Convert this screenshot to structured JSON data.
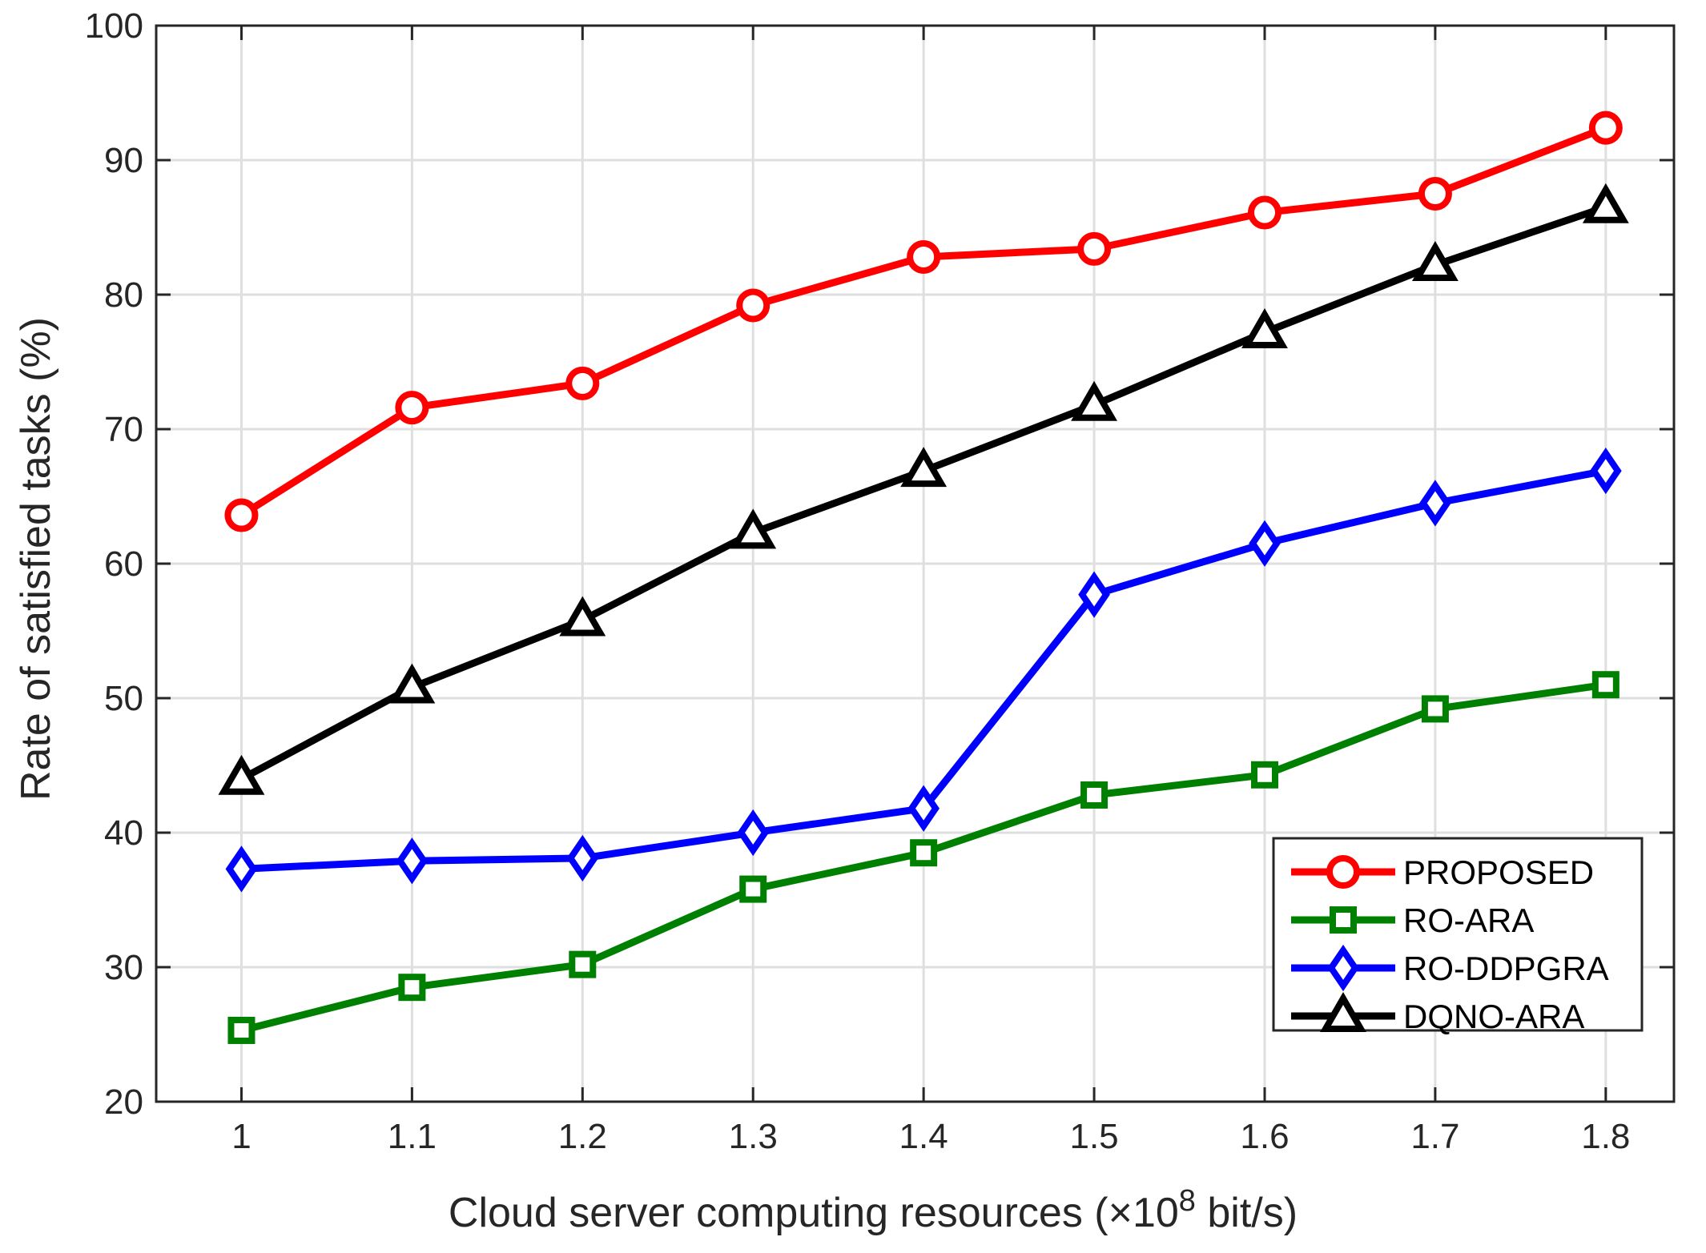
{
  "chart_data": {
    "type": "line",
    "title": "",
    "xlabel": "Cloud server computing resources (×10",
    "xlabel_exponent": "8",
    "xlabel_suffix": " bit/s)",
    "ylabel": "Rate of satisfied tasks (%)",
    "x": [
      1,
      1.1,
      1.2,
      1.3,
      1.4,
      1.5,
      1.6,
      1.7,
      1.8
    ],
    "x_tick_labels": [
      "1",
      "1.1",
      "1.2",
      "1.3",
      "1.4",
      "1.5",
      "1.6",
      "1.7",
      "1.8"
    ],
    "y_ticks": [
      20,
      30,
      40,
      50,
      60,
      70,
      80,
      90,
      100
    ],
    "y_tick_labels": [
      "20",
      "30",
      "40",
      "50",
      "60",
      "70",
      "80",
      "90",
      "100"
    ],
    "xlim": [
      0.95,
      1.84
    ],
    "ylim": [
      20,
      100
    ],
    "grid": true,
    "legend_position": "bottom-right",
    "series": [
      {
        "name": "PROPOSED",
        "color": "#ff0000",
        "marker": "circle",
        "values": [
          63.6,
          71.6,
          73.4,
          79.2,
          82.8,
          83.4,
          86.1,
          87.5,
          92.4
        ]
      },
      {
        "name": "RO-ARA",
        "color": "#008000",
        "marker": "square",
        "values": [
          25.3,
          28.5,
          30.2,
          35.8,
          38.5,
          42.8,
          44.3,
          49.2,
          51.0
        ]
      },
      {
        "name": "RO-DDPGRA",
        "color": "#0000ff",
        "marker": "diamond",
        "values": [
          37.3,
          37.9,
          38.1,
          40.0,
          41.8,
          57.7,
          61.5,
          64.5,
          66.9
        ]
      },
      {
        "name": "DQNO-ARA",
        "color": "#000000",
        "marker": "triangle",
        "values": [
          44.0,
          50.8,
          55.8,
          62.3,
          66.9,
          71.8,
          77.2,
          82.2,
          86.5
        ]
      }
    ]
  }
}
